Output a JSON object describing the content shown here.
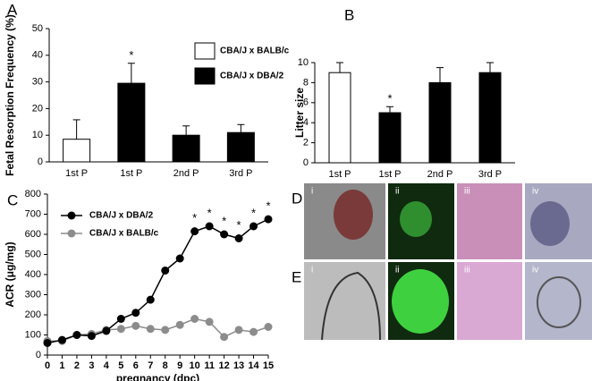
{
  "chart_data": [
    {
      "type": "bar",
      "panel": "A",
      "ylabel": "Fetal Resorption Frequency (%)",
      "categories": [
        "1st P",
        "1st P",
        "2nd P",
        "3rd P"
      ],
      "values": [
        8.5,
        29.5,
        10,
        11
      ],
      "errors": [
        7.3,
        7.5,
        3.5,
        3
      ],
      "colors": [
        "#ffffff",
        "#000000",
        "#000000",
        "#000000"
      ],
      "annotations": [
        null,
        "*",
        null,
        null
      ],
      "legend": [
        {
          "name": "CBA/J x BALB/c",
          "color": "#ffffff"
        },
        {
          "name": "CBA/J x DBA/2",
          "color": "#000000"
        }
      ],
      "ylim": [
        0,
        50
      ],
      "yticks": [
        0,
        10,
        20,
        30,
        40,
        50
      ]
    },
    {
      "type": "bar",
      "panel": "B",
      "ylabel": "Litter size",
      "categories": [
        "1st P",
        "1st P",
        "2nd P",
        "3rd P"
      ],
      "values": [
        9,
        5,
        8,
        9
      ],
      "errors": [
        1,
        0.6,
        1.5,
        1
      ],
      "colors": [
        "#ffffff",
        "#000000",
        "#000000",
        "#000000"
      ],
      "annotations": [
        null,
        "*",
        null,
        null
      ],
      "ylim": [
        0,
        10
      ],
      "yticks": [
        0,
        2,
        4,
        6,
        8,
        10
      ]
    },
    {
      "type": "line",
      "panel": "C",
      "xlabel": "pregnancy (dpc)",
      "ylabel": "ACR (μg/mg)",
      "x": [
        0,
        1,
        2,
        3,
        4,
        5,
        6,
        7,
        8,
        9,
        10,
        11,
        12,
        13,
        14,
        15
      ],
      "series": [
        {
          "name": "CBA/J x DBA/2",
          "color": "#000000",
          "values": [
            60,
            75,
            100,
            95,
            120,
            180,
            210,
            275,
            420,
            480,
            615,
            640,
            600,
            580,
            640,
            675
          ],
          "annotations": [
            null,
            null,
            null,
            null,
            null,
            null,
            null,
            null,
            null,
            null,
            "*",
            "*",
            "*",
            "*",
            "*",
            "*"
          ]
        },
        {
          "name": "CBA/J x BALB/c",
          "color": "#8c8c8c",
          "values": [
            70,
            70,
            100,
            105,
            125,
            130,
            145,
            130,
            125,
            150,
            180,
            165,
            90,
            125,
            115,
            140
          ]
        }
      ],
      "xlim": [
        0,
        15
      ],
      "xticks": [
        0,
        1,
        2,
        3,
        4,
        5,
        6,
        7,
        8,
        9,
        10,
        11,
        12,
        13,
        14,
        15
      ],
      "ylim": [
        0,
        800
      ],
      "yticks": [
        0,
        100,
        200,
        300,
        400,
        500,
        600,
        700,
        800
      ]
    }
  ],
  "figure_panels": [
    {
      "label": "D",
      "images": [
        "i",
        "ii",
        "iii",
        "iv"
      ]
    },
    {
      "label": "E",
      "images": [
        "i",
        "ii",
        "iii",
        "iv"
      ]
    }
  ]
}
